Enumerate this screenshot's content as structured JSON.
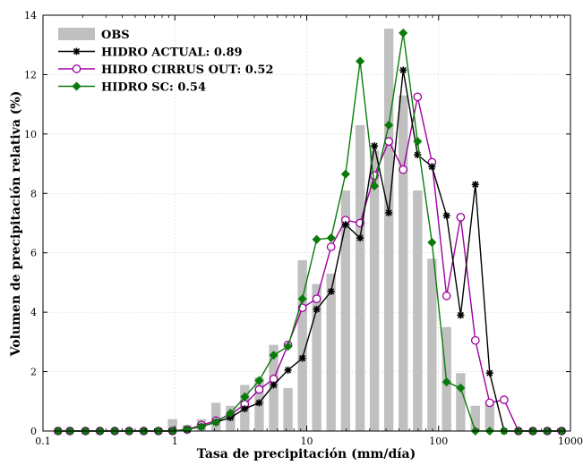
{
  "chart_data": {
    "type": "bar+line",
    "xscale": "log",
    "xlim": [
      0.1,
      1000
    ],
    "ylim": [
      0,
      14
    ],
    "xlabel": "Tasa de precipitación (mm/día)",
    "ylabel": "Volumen de precipitación relativa (%)",
    "xticks": [
      "0.1",
      "1",
      "10",
      "100",
      "1000"
    ],
    "yticks": [
      "0",
      "2",
      "4",
      "6",
      "8",
      "10",
      "12",
      "14"
    ],
    "legend_position": "top-left",
    "x": [
      0.13,
      0.16,
      0.21,
      0.27,
      0.35,
      0.45,
      0.58,
      0.75,
      0.96,
      1.24,
      1.59,
      2.05,
      2.64,
      3.39,
      4.36,
      5.61,
      7.21,
      9.27,
      11.9,
      15.3,
      19.7,
      25.4,
      32.6,
      41.9,
      53.9,
      69.3,
      89.1,
      115,
      147,
      190,
      244,
      314,
      403,
      519,
      667,
      858
    ],
    "bars": {
      "name": "OBS",
      "color": "#c0c0c0",
      "values": [
        0,
        0,
        0,
        0,
        0,
        0,
        0,
        0,
        0.4,
        0.2,
        0.4,
        0.95,
        0.85,
        1.55,
        1.8,
        2.9,
        1.45,
        5.75,
        4.95,
        5.3,
        8.1,
        10.3,
        9.45,
        13.55,
        11.3,
        8.1,
        5.8,
        3.5,
        1.95,
        0.85,
        1.0,
        0,
        0,
        0,
        0,
        0
      ]
    },
    "series": [
      {
        "name": "HIDRO ACTUAL: 0.89",
        "color": "#000000",
        "marker": "star",
        "values": [
          0,
          0,
          0,
          0,
          0,
          0,
          0,
          0,
          0,
          0.05,
          0.15,
          0.3,
          0.45,
          0.75,
          0.95,
          1.55,
          2.05,
          2.45,
          4.1,
          4.7,
          6.95,
          6.5,
          9.6,
          7.35,
          12.15,
          9.3,
          8.9,
          7.25,
          3.9,
          8.3,
          1.95,
          0,
          0,
          0,
          0,
          0
        ]
      },
      {
        "name": "HIDRO CIRRUS OUT: 0.52",
        "color": "#a000a0",
        "marker": "circle",
        "values": [
          0,
          0,
          0,
          0,
          0,
          0,
          0,
          0,
          0,
          0.05,
          0.2,
          0.35,
          0.55,
          0.9,
          1.4,
          1.75,
          2.9,
          4.15,
          4.45,
          6.2,
          7.1,
          7.0,
          8.6,
          9.75,
          8.8,
          11.25,
          9.05,
          4.55,
          7.2,
          3.05,
          0.95,
          1.05,
          0,
          0,
          0,
          0
        ]
      },
      {
        "name": "HIDRO SC: 0.54",
        "color": "#0a7a0a",
        "marker": "diamond",
        "values": [
          0,
          0,
          0,
          0,
          0,
          0,
          0,
          0,
          0,
          0.05,
          0.15,
          0.3,
          0.6,
          1.15,
          1.7,
          2.55,
          2.85,
          4.45,
          6.45,
          6.5,
          8.65,
          12.45,
          8.25,
          10.3,
          13.4,
          9.75,
          6.35,
          1.65,
          1.45,
          0,
          0,
          0,
          0,
          0,
          0,
          0
        ]
      }
    ]
  }
}
